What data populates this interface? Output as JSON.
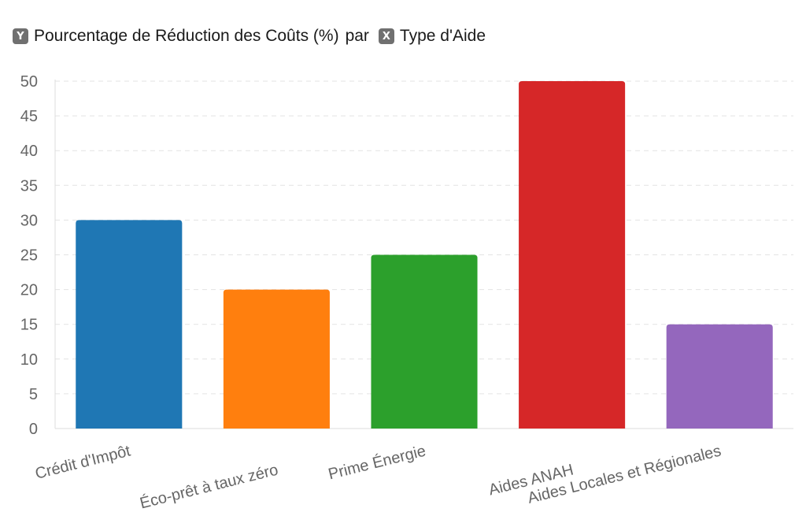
{
  "header": {
    "y_badge": "Y",
    "y_label": "Pourcentage de Réduction des Coûts (%)",
    "connector": "par",
    "x_badge": "X",
    "x_label": "Type d'Aide"
  },
  "colors": {
    "grid": "#e3e3e3",
    "axis": "#dddddd"
  },
  "chart_data": {
    "type": "bar",
    "title": "Pourcentage de Réduction des Coûts (%) par Type d'Aide",
    "xlabel": "Type d'Aide",
    "ylabel": "Pourcentage de Réduction des Coûts (%)",
    "categories": [
      "Crédit d'Impôt",
      "Éco-prêt à taux zéro",
      "Prime Énergie",
      "Aides ANAH",
      "Aides Locales et Régionales"
    ],
    "values": [
      30,
      20,
      25,
      50,
      15
    ],
    "bar_colors": [
      "#1f77b4",
      "#ff7f0e",
      "#2ca02c",
      "#d62728",
      "#9467bd"
    ],
    "ylim": [
      0,
      50
    ],
    "yticks": [
      "0",
      "5",
      "10",
      "15",
      "20",
      "25",
      "30",
      "35",
      "40",
      "45",
      "50"
    ],
    "grid": true
  }
}
